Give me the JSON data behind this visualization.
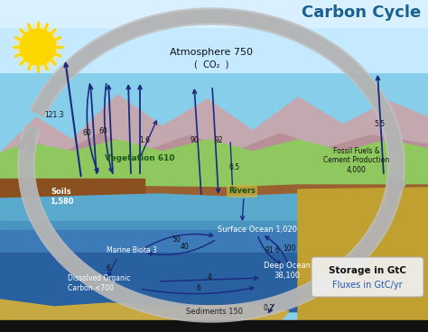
{
  "title": "Carbon Cycle",
  "title_color": "#1a6090",
  "sky_color": "#87ceeb",
  "sky_color2": "#aaddf5",
  "mountain_color1": "#c4a8b0",
  "mountain_color2": "#b89098",
  "land_color": "#7dba50",
  "land_color2": "#90c860",
  "soil_color": "#9b6030",
  "ocean_top_color": "#5aaace",
  "ocean_mid_color": "#3d7ab8",
  "ocean_deep_color": "#2860a0",
  "sediment_color": "#c8a840",
  "sand_right_color": "#c0a030",
  "big_arrow_color": "#aaaaaa",
  "flux_arrow_color": "#1a2a80",
  "sun_color": "#FFD700",
  "sun_ray_color": "#FFD700",
  "labels": {
    "title": "Carbon Cycle",
    "atmosphere": "Atmosphere 750",
    "co2": "(  CO₂  )",
    "vegetation": "Vegetation 610",
    "soils": "Soils\n1,580",
    "marine_biota": "Marine Biota 3",
    "dissolved_organic": "Dissolved Organic\nCarbon <700",
    "surface_ocean": "Surface Ocean 1,020",
    "deep_ocean": "Deep Ocean\n38,100",
    "sediments": "Sediments 150",
    "rivers": "Rivers",
    "fossil_fuels": "Fossil Fuels &\nCement Production\n4,000",
    "storage": "Storage in GtC",
    "fluxes": "Fluxes in GtC/yr"
  },
  "fluxes": {
    "f121": "121.3",
    "f60a": "60",
    "f60b": "60",
    "f16": "1.6",
    "f05": "0.5",
    "f55": "5.5",
    "f90": "90",
    "f92": "92",
    "f916": "91.6",
    "f100": "100",
    "f50": "50",
    "f40": "40",
    "f6a": "6",
    "f4": "4",
    "f6b": "6",
    "f02": "0.2"
  }
}
